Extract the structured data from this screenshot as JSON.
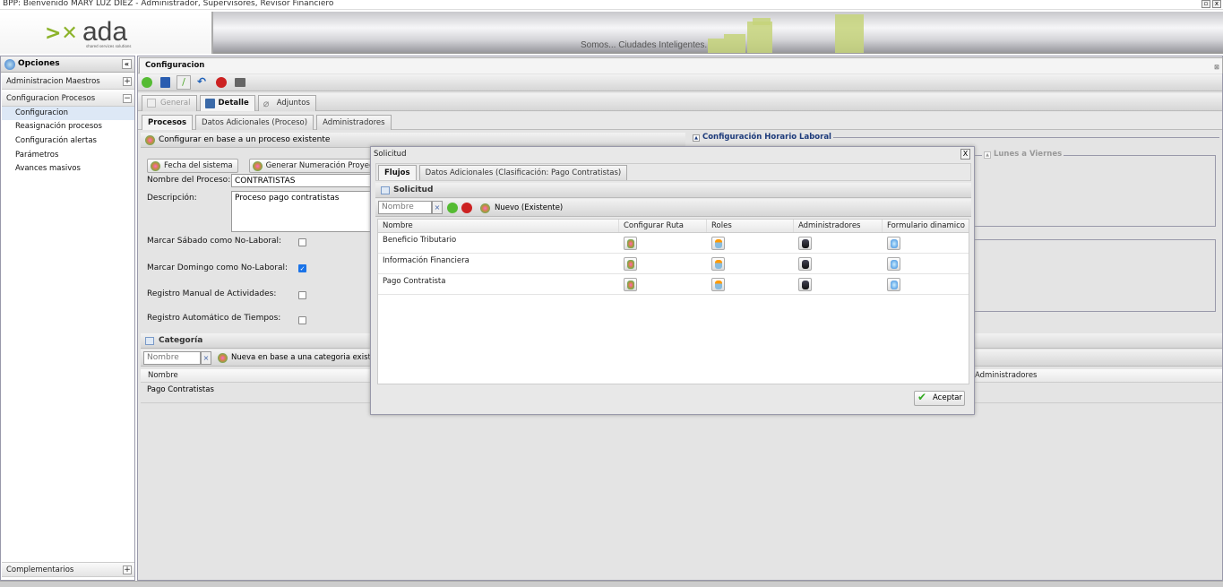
{
  "window": {
    "title": "BPP: Bienvenido MARY LUZ DIEZ - Administrador, Supervisores, Revisor Financiero"
  },
  "banner": {
    "logo": "ada",
    "logo_tagline": "shared services solutions",
    "slogan": "Somos... Ciudades Inteligentes."
  },
  "sidebar": {
    "title": "Opciones",
    "sections": [
      {
        "label": "Administracion Maestros",
        "toggle": "+"
      },
      {
        "label": "Configuracion Procesos",
        "toggle": "−"
      }
    ],
    "items": [
      {
        "label": "Configuracion",
        "selected": true
      },
      {
        "label": "Reasignación procesos"
      },
      {
        "label": "Configuración alertas"
      },
      {
        "label": "Parámetros"
      },
      {
        "label": "Avances masivos"
      }
    ],
    "footer": {
      "label": "Complementarios",
      "toggle": "+"
    }
  },
  "main": {
    "tab": "Configuracion",
    "toolbar_icons": [
      "add-icon",
      "save-icon",
      "edit-icon",
      "undo-icon",
      "delete-icon",
      "print-icon"
    ],
    "subtabs": [
      "General",
      "Detalle",
      "Adjuntos"
    ],
    "inner_tabs": [
      "Procesos",
      "Datos Adicionales (Proceso)",
      "Administradores"
    ],
    "config_existing": "Configurar en base a un proceso existente",
    "btn_fecha": "Fecha del sistema",
    "btn_numeracion": "Generar Numeración Proyecto",
    "nombre_label": "Nombre del Proceso:",
    "nombre_value": "CONTRATISTAS",
    "desc_label": "Descripción:",
    "desc_value": "Proceso pago contratistas",
    "checks": [
      {
        "label": "Marcar Sábado como No-Laboral:",
        "checked": false
      },
      {
        "label": "Marcar Domingo como No-Laboral:",
        "checked": true
      },
      {
        "label": "Registro Manual de Actividades:",
        "checked": false
      },
      {
        "label": "Registro Automático de Tiempos:",
        "checked": false
      }
    ],
    "horario_title": "Configuración Horario Laboral",
    "lunes_title": "Lunes a Viernes",
    "categoria": {
      "title": "Categoría",
      "search_placeholder": "Nombre",
      "nueva": "Nueva en base a una categoria existente",
      "col_nombre": "Nombre",
      "col_admin": "Administradores",
      "rows": [
        "Pago Contratistas"
      ]
    }
  },
  "modal": {
    "title": "Solicitud",
    "close": "X",
    "tabs": [
      "Flujos",
      "Datos Adicionales (Clasificación: Pago Contratistas)"
    ],
    "panel_title": "Solicitud",
    "search_placeholder": "Nombre",
    "nuevo": "Nuevo (Existente)",
    "columns": [
      "Nombre",
      "Configurar Ruta",
      "Roles",
      "Administradores",
      "Formulario dinamico"
    ],
    "rows": [
      "Beneficio Tributario",
      "Información Financiera",
      "Pago Contratista"
    ],
    "accept": "Aceptar"
  }
}
